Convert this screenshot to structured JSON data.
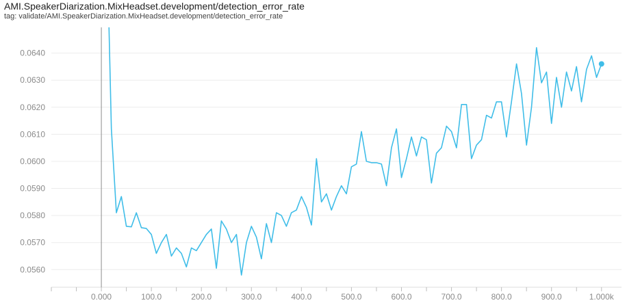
{
  "header": {
    "title": "AMI.SpeakerDiarization.MixHeadset.development/detection_error_rate",
    "tag": "tag: validate/AMI.SpeakerDiarization.MixHeadset.development/detection_error_rate"
  },
  "colors": {
    "series": "#3fbde8"
  },
  "chart_data": {
    "type": "line",
    "title": "AMI.SpeakerDiarization.MixHeadset.development/detection_error_rate",
    "xlabel": "",
    "ylabel": "",
    "xlim": [
      -100,
      1040
    ],
    "ylim": [
      0.05535,
      0.06495
    ],
    "grid": true,
    "x_ticks": [
      0,
      100,
      200,
      300,
      400,
      500,
      600,
      700,
      800,
      900,
      1000
    ],
    "x_tick_labels": [
      "0.000",
      "100.0",
      "200.0",
      "300.0",
      "400.0",
      "500.0",
      "600.0",
      "700.0",
      "800.0",
      "900.0",
      "1.000k"
    ],
    "y_ticks": [
      0.056,
      0.057,
      0.058,
      0.059,
      0.06,
      0.061,
      0.062,
      0.063,
      0.064
    ],
    "y_tick_labels": [
      "0.0560",
      "0.0570",
      "0.0580",
      "0.0590",
      "0.0600",
      "0.0610",
      "0.0620",
      "0.0630",
      "0.0640"
    ],
    "series": [
      {
        "x": [
          15,
          20,
          30,
          40,
          50,
          60,
          70,
          80,
          90,
          100,
          110,
          120,
          130,
          140,
          150,
          160,
          170,
          180,
          190,
          200,
          210,
          220,
          230,
          240,
          250,
          260,
          270,
          280,
          290,
          300,
          310,
          320,
          330,
          340,
          350,
          360,
          370,
          380,
          390,
          400,
          410,
          420,
          430,
          440,
          450,
          460,
          470,
          480,
          490,
          500,
          510,
          520,
          530,
          540,
          550,
          560,
          570,
          580,
          590,
          600,
          610,
          620,
          630,
          640,
          650,
          660,
          670,
          680,
          690,
          700,
          710,
          720,
          730,
          740,
          750,
          760,
          770,
          780,
          790,
          800,
          810,
          820,
          830,
          840,
          850,
          860,
          870,
          880,
          890,
          900,
          910,
          920,
          930,
          940,
          950,
          960,
          970,
          980,
          990,
          1000
        ],
        "y": [
          0.0652,
          0.0612,
          0.0581,
          0.0587,
          0.0576,
          0.05758,
          0.0581,
          0.05755,
          0.05752,
          0.0573,
          0.0566,
          0.057,
          0.0573,
          0.0565,
          0.0568,
          0.0566,
          0.0561,
          0.0568,
          0.0567,
          0.057,
          0.0573,
          0.0575,
          0.05605,
          0.0578,
          0.0575,
          0.057,
          0.0573,
          0.0558,
          0.057,
          0.0576,
          0.0572,
          0.0564,
          0.0577,
          0.057,
          0.0581,
          0.058,
          0.0576,
          0.0581,
          0.0582,
          0.0587,
          0.0583,
          0.05765,
          0.0601,
          0.0585,
          0.0588,
          0.0582,
          0.0587,
          0.0591,
          0.0588,
          0.0598,
          0.0599,
          0.0611,
          0.06,
          0.05995,
          0.05995,
          0.0599,
          0.0591,
          0.0605,
          0.0612,
          0.0594,
          0.0601,
          0.0609,
          0.0602,
          0.0609,
          0.0608,
          0.0592,
          0.0603,
          0.0605,
          0.0613,
          0.0611,
          0.0605,
          0.0621,
          0.0621,
          0.0601,
          0.0606,
          0.0608,
          0.0617,
          0.0616,
          0.0622,
          0.0622,
          0.0609,
          0.0622,
          0.0636,
          0.0625,
          0.0606,
          0.062,
          0.0642,
          0.0629,
          0.0633,
          0.0614,
          0.0631,
          0.062,
          0.0633,
          0.0626,
          0.0635,
          0.0622,
          0.0634,
          0.0639,
          0.0631,
          0.0636
        ]
      }
    ]
  }
}
